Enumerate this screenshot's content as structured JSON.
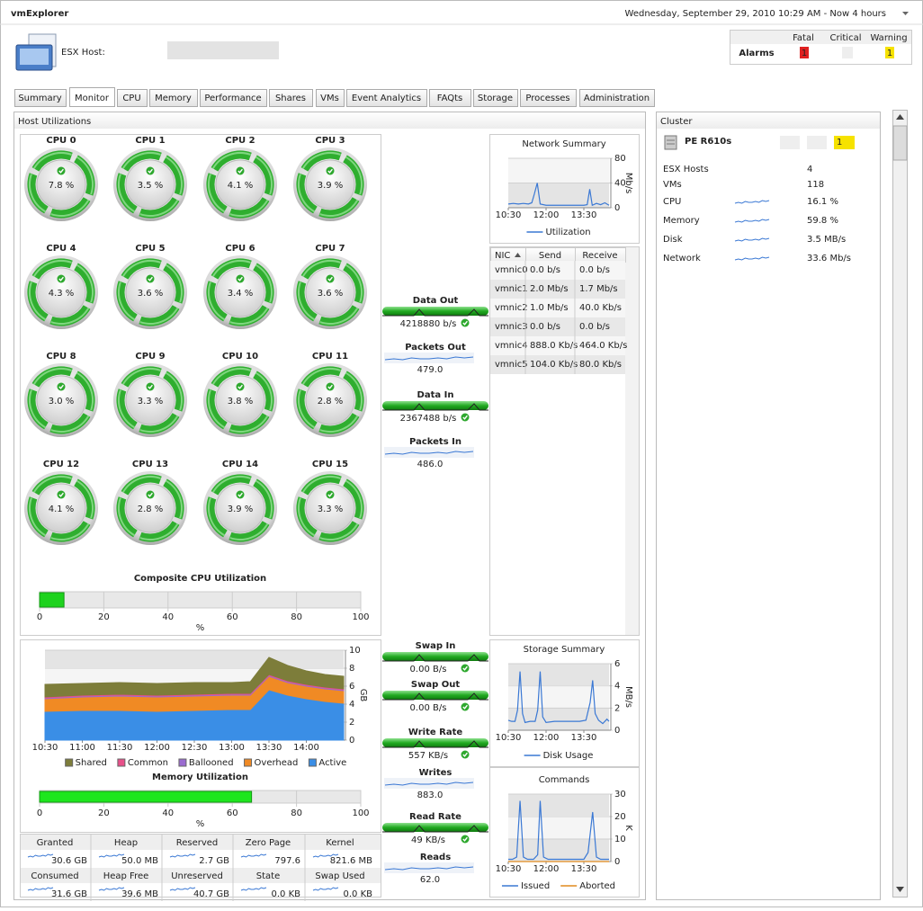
{
  "header": {
    "app": "vmExplorer",
    "datetime": "Wednesday, September 29, 2010 10:29 AM - Now 4 hours",
    "title": "ESX Host:"
  },
  "alarms": {
    "label": "Alarms",
    "columns": [
      "Fatal",
      "Critical",
      "Warning"
    ],
    "fatal": "1",
    "warning": "1"
  },
  "tabs": [
    "Summary",
    "Monitor",
    "CPU",
    "Memory",
    "Performance",
    "Shares",
    "VMs",
    "Event Analytics",
    "FAQts",
    "Storage",
    "Processes",
    "Administration"
  ],
  "active_tab": 1,
  "host_utilizations": {
    "title": "Host Utilizations",
    "cpus": [
      {
        "name": "CPU 0",
        "value": "7.8 %"
      },
      {
        "name": "CPU 1",
        "value": "3.5 %"
      },
      {
        "name": "CPU 2",
        "value": "4.1 %"
      },
      {
        "name": "CPU 3",
        "value": "3.9 %"
      },
      {
        "name": "CPU 4",
        "value": "4.3 %"
      },
      {
        "name": "CPU 5",
        "value": "3.6 %"
      },
      {
        "name": "CPU 6",
        "value": "3.4 %"
      },
      {
        "name": "CPU 7",
        "value": "3.6 %"
      },
      {
        "name": "CPU 8",
        "value": "3.0 %"
      },
      {
        "name": "CPU 9",
        "value": "3.3 %"
      },
      {
        "name": "CPU 10",
        "value": "3.8 %"
      },
      {
        "name": "CPU 11",
        "value": "2.8 %"
      },
      {
        "name": "CPU 12",
        "value": "4.1 %"
      },
      {
        "name": "CPU 13",
        "value": "2.8 %"
      },
      {
        "name": "CPU 14",
        "value": "3.9 %"
      },
      {
        "name": "CPU 15",
        "value": "3.3 %"
      }
    ],
    "composite": {
      "type": "bar",
      "title": "Composite CPU Utilization",
      "value": 7.6,
      "color": "#1ed21e",
      "xlim": [
        0,
        100
      ],
      "xticks": [
        0,
        20,
        40,
        60,
        80,
        100
      ],
      "xlabel": "%"
    },
    "flows": [
      {
        "label": "Data Out",
        "value": "4218880 b/s"
      },
      {
        "label": "Packets Out",
        "value": "479.0"
      },
      {
        "label": "Data In",
        "value": "2367488 b/s"
      },
      {
        "label": "Packets In",
        "value": "486.0"
      },
      {
        "label": "Swap In",
        "value": "0.00 B/s"
      },
      {
        "label": "Swap Out",
        "value": "0.00 B/s"
      },
      {
        "label": "Write Rate",
        "value": "557 KB/s"
      },
      {
        "label": "Writes",
        "value": "883.0"
      },
      {
        "label": "Read Rate",
        "value": "49 KB/s"
      },
      {
        "label": "Reads",
        "value": "62.0"
      }
    ],
    "network_summary": {
      "type": "line",
      "title": "Network Summary",
      "x": [
        0,
        12,
        24,
        36,
        48,
        56,
        62,
        69,
        76,
        90,
        110,
        130,
        150,
        170,
        180,
        188,
        194,
        200,
        210,
        220,
        230,
        240
      ],
      "series": [
        {
          "name": "Utilization",
          "color": "#3a78d4",
          "values": [
            6,
            7,
            6,
            7,
            6,
            8,
            22,
            40,
            6,
            4,
            4,
            4,
            4,
            4,
            4,
            5,
            30,
            4,
            7,
            5,
            8,
            4
          ]
        }
      ],
      "xlim": [
        0,
        240
      ],
      "xticks": [
        {
          "value": 0,
          "label": "10:30"
        },
        {
          "value": 90,
          "label": "12:00"
        },
        {
          "value": 180,
          "label": "13:30"
        }
      ],
      "ylim": [
        0,
        80
      ],
      "yticks": [
        0,
        40,
        80
      ],
      "ylabel": "Mb/s"
    },
    "nic_table": {
      "columns": [
        "NIC",
        "Send",
        "Receive"
      ],
      "rows": [
        [
          "vmnic0",
          "0.0 b/s",
          "0.0 b/s"
        ],
        [
          "vmnic1",
          "2.0 Mb/s",
          "1.7 Mb/s"
        ],
        [
          "vmnic2",
          "1.0 Mb/s",
          "40.0 Kb/s"
        ],
        [
          "vmnic3",
          "0.0 b/s",
          "0.0 b/s"
        ],
        [
          "vmnic4",
          "888.0 Kb/s",
          "464.0 Kb/s"
        ],
        [
          "vmnic5",
          "104.0 Kb/s",
          "80.0 Kb/s"
        ]
      ]
    },
    "memory_chart": {
      "type": "area",
      "x": [
        0,
        30,
        60,
        90,
        120,
        150,
        165,
        180,
        195,
        210,
        225,
        240
      ],
      "series": [
        {
          "name": "Shared",
          "color": "#7d7d3a",
          "values": [
            1.4,
            1.3,
            1.3,
            1.3,
            1.3,
            1.2,
            1.3,
            1.9,
            1.7,
            1.5,
            1.4,
            1.4
          ]
        },
        {
          "name": "Common",
          "color": "#e8508a",
          "values": [
            0.1,
            0.1,
            0.1,
            0.1,
            0.1,
            0.1,
            0.1,
            0.1,
            0.1,
            0.1,
            0.1,
            0.1
          ]
        },
        {
          "name": "Ballooned",
          "color": "#9a6bd0",
          "values": [
            0.1,
            0.1,
            0.1,
            0.1,
            0.1,
            0.1,
            0.1,
            0.1,
            0.1,
            0.1,
            0.1,
            0.1
          ]
        },
        {
          "name": "Overhead",
          "color": "#f08a24",
          "values": [
            1.4,
            1.5,
            1.6,
            1.6,
            1.6,
            1.6,
            1.6,
            1.5,
            1.4,
            1.4,
            1.4,
            1.4
          ]
        },
        {
          "name": "Active",
          "color": "#3a8ee6",
          "values": [
            3.2,
            3.3,
            3.3,
            3.2,
            3.3,
            3.4,
            3.4,
            5.6,
            5.0,
            4.6,
            4.3,
            4.1
          ]
        }
      ],
      "xlim": [
        0,
        240
      ],
      "xticks": [
        {
          "value": 0,
          "label": "10:30"
        },
        {
          "value": 30,
          "label": "11:00"
        },
        {
          "value": 60,
          "label": "11:30"
        },
        {
          "value": 90,
          "label": "12:00"
        },
        {
          "value": 120,
          "label": "12:30"
        },
        {
          "value": 150,
          "label": "13:00"
        },
        {
          "value": 180,
          "label": "13:30"
        },
        {
          "value": 210,
          "label": "14:00"
        }
      ],
      "ylim": [
        0,
        10
      ],
      "yticks": [
        0,
        2,
        4,
        6,
        8,
        10
      ],
      "ylabel": "GB"
    },
    "memory_utilization": {
      "type": "bar",
      "title": "Memory Utilization",
      "value": 66,
      "color": "#1ee61e",
      "xlim": [
        0,
        100
      ],
      "xticks": [
        0,
        20,
        40,
        60,
        80,
        100
      ],
      "xlabel": "%"
    },
    "memory_stats": {
      "rows": [
        {
          "labels": [
            "Granted",
            "Heap",
            "Reserved",
            "Zero Page",
            "Kernel"
          ],
          "values": [
            "30.6 GB",
            "50.0 MB",
            "2.7 GB",
            "797.6",
            "821.6 MB"
          ]
        },
        {
          "labels": [
            "Consumed",
            "Heap Free",
            "Unreserved",
            "State",
            "Swap Used"
          ],
          "values": [
            "31.6 GB",
            "39.6 MB",
            "40.7 GB",
            "0.0 KB",
            "0.0 KB"
          ]
        }
      ]
    },
    "storage_summary": {
      "type": "line",
      "title": "Storage Summary",
      "x": [
        0,
        8,
        16,
        22,
        28,
        34,
        40,
        52,
        64,
        70,
        76,
        82,
        90,
        110,
        130,
        150,
        170,
        185,
        195,
        201,
        207,
        215,
        225,
        235,
        240
      ],
      "series": [
        {
          "name": "Disk Usage",
          "color": "#3a78d4",
          "values": [
            0.9,
            0.8,
            0.8,
            1.8,
            5.3,
            1.5,
            0.7,
            0.8,
            0.8,
            1.8,
            5.3,
            1.2,
            0.7,
            0.8,
            0.8,
            0.8,
            0.8,
            0.9,
            2.5,
            4.5,
            1.5,
            0.9,
            0.6,
            1.0,
            0.8
          ]
        }
      ],
      "xlim": [
        0,
        240
      ],
      "xticks": [
        {
          "value": 0,
          "label": "10:30"
        },
        {
          "value": 90,
          "label": "12:00"
        },
        {
          "value": 180,
          "label": "13:30"
        }
      ],
      "ylim": [
        0,
        6
      ],
      "yticks": [
        0,
        2,
        4,
        6
      ],
      "ylabel": "MB/s"
    },
    "commands": {
      "type": "line",
      "title": "Commands",
      "x": [
        0,
        10,
        20,
        28,
        36,
        46,
        60,
        70,
        76,
        84,
        95,
        120,
        150,
        180,
        190,
        201,
        210,
        220,
        230,
        240
      ],
      "series": [
        {
          "name": "Issued",
          "color": "#3a78d4",
          "values": [
            1,
            1,
            2,
            27,
            2,
            1,
            1,
            3,
            27,
            2,
            1,
            1,
            1,
            1,
            4,
            22,
            2,
            1,
            1,
            1
          ]
        },
        {
          "name": "Aborted",
          "color": "#e08a1e",
          "values": [
            0,
            0,
            0,
            0,
            0,
            0,
            0,
            0,
            0,
            0,
            0,
            0,
            0,
            0,
            0,
            0,
            0,
            0,
            0,
            0
          ]
        }
      ],
      "xlim": [
        0,
        240
      ],
      "xticks": [
        {
          "value": 0,
          "label": "10:30"
        },
        {
          "value": 90,
          "label": "12:00"
        },
        {
          "value": 180,
          "label": "13:30"
        }
      ],
      "ylim": [
        0,
        30
      ],
      "yticks": [
        0,
        10,
        20,
        30
      ],
      "ylabel": "K"
    }
  },
  "cluster": {
    "title": "Cluster",
    "name": "PE R610s",
    "alarm": "1",
    "rows": [
      {
        "label": "ESX Hosts",
        "value": "4"
      },
      {
        "label": "VMs",
        "value": "118"
      },
      {
        "label": "CPU",
        "value": "16.1 %"
      },
      {
        "label": "Memory",
        "value": "59.8 %"
      },
      {
        "label": "Disk",
        "value": "3.5 MB/s"
      },
      {
        "label": "Network",
        "value": "33.6 Mb/s"
      }
    ]
  }
}
